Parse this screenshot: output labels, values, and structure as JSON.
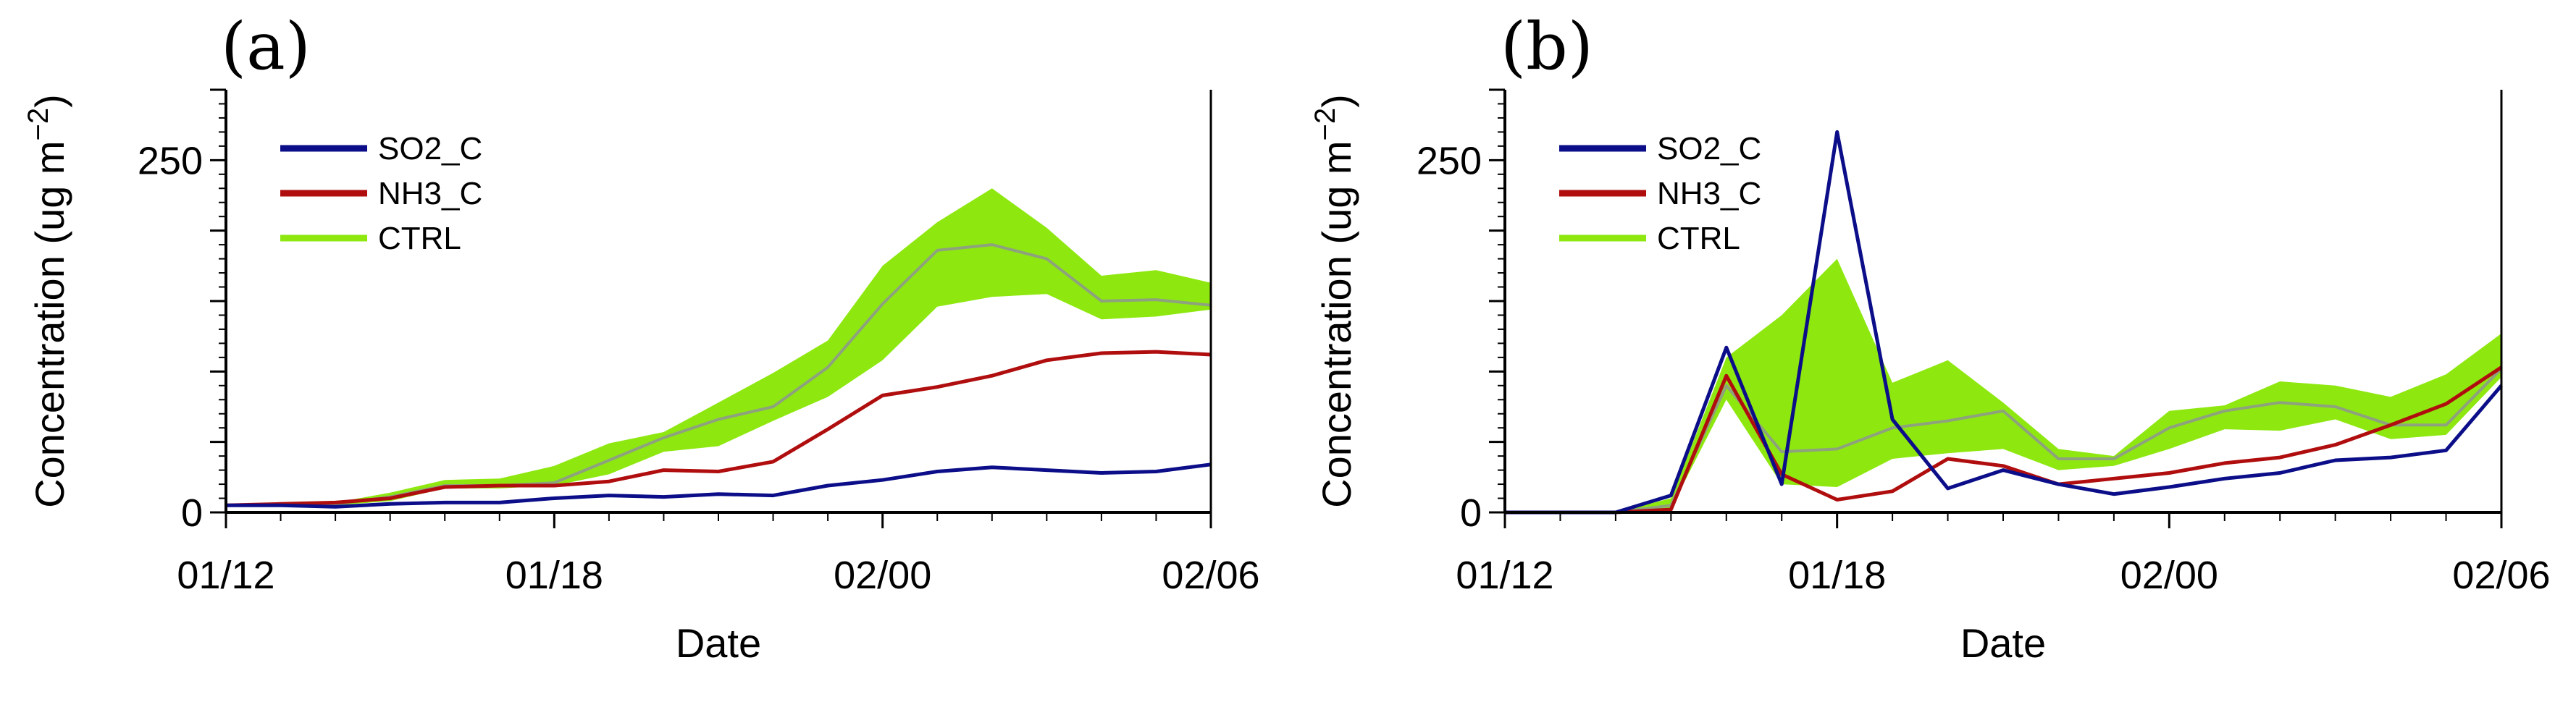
{
  "chart_data": [
    {
      "panel_label": "(a)",
      "type": "line",
      "xlabel": "Date",
      "ylabel": "Concentration (ug m",
      "ylabel_exponent": "−2",
      "ylabel_suffix": ")",
      "x": [
        0,
        1,
        2,
        3,
        4,
        5,
        6,
        7,
        8,
        9,
        10,
        11,
        12,
        13,
        14,
        15,
        16,
        17,
        18
      ],
      "xticks": [
        {
          "x": 0,
          "label": "01/12"
        },
        {
          "x": 6,
          "label": "01/18"
        },
        {
          "x": 12,
          "label": "02/00"
        },
        {
          "x": 18,
          "label": "02/06"
        }
      ],
      "ylim": [
        0,
        300
      ],
      "yticks": [
        {
          "y": 0,
          "label": "0"
        },
        {
          "y": 250,
          "label": "250"
        }
      ],
      "ytick_major": [
        0,
        50,
        100,
        150,
        200,
        250,
        300
      ],
      "ytick_minor_step": 10,
      "grid": false,
      "legend_position": "top-left",
      "series": [
        {
          "name": "SO2_C",
          "color": "#0b0e88",
          "values": [
            5,
            5,
            4,
            6,
            7,
            7,
            10,
            12,
            11,
            13,
            12,
            19,
            23,
            29,
            32,
            30,
            28,
            29,
            34
          ]
        },
        {
          "name": "NH3_C",
          "color": "#b00e0e",
          "values": [
            5,
            6,
            7,
            10,
            18,
            19,
            19,
            22,
            30,
            29,
            36,
            59,
            83,
            89,
            97,
            108,
            113,
            114,
            112
          ]
        },
        {
          "name": "CTRL",
          "color": "#8ee810",
          "line_color": "#8da27d",
          "values": [
            5,
            5,
            6,
            11,
            19,
            19,
            21,
            37,
            53,
            66,
            75,
            103,
            148,
            186,
            190,
            180,
            150,
            151,
            147
          ],
          "lower": [
            5,
            5,
            5,
            8,
            17,
            17,
            19,
            27,
            43,
            47,
            65,
            82,
            108,
            146,
            153,
            155,
            137,
            139,
            144
          ],
          "upper": [
            5,
            6,
            7,
            14,
            23,
            24,
            33,
            49,
            57,
            78,
            99,
            122,
            175,
            206,
            230,
            202,
            168,
            172,
            163
          ]
        }
      ]
    },
    {
      "panel_label": "(b)",
      "type": "line",
      "xlabel": "Date",
      "ylabel": "Concentration (ug m",
      "ylabel_exponent": "−2",
      "ylabel_suffix": ")",
      "x": [
        0,
        1,
        2,
        3,
        4,
        5,
        6,
        7,
        8,
        9,
        10,
        11,
        12,
        13,
        14,
        15,
        16,
        17,
        18
      ],
      "xticks": [
        {
          "x": 0,
          "label": "01/12"
        },
        {
          "x": 6,
          "label": "01/18"
        },
        {
          "x": 12,
          "label": "02/00"
        },
        {
          "x": 18,
          "label": "02/06"
        }
      ],
      "ylim": [
        0,
        300
      ],
      "yticks": [
        {
          "y": 0,
          "label": "0"
        },
        {
          "y": 250,
          "label": "250"
        }
      ],
      "ytick_major": [
        0,
        50,
        100,
        150,
        200,
        250,
        300
      ],
      "ytick_minor_step": 10,
      "grid": false,
      "legend_position": "top-left",
      "series": [
        {
          "name": "SO2_C",
          "color": "#0b0e88",
          "values": [
            0,
            0,
            0,
            12,
            117,
            20,
            270,
            66,
            17,
            30,
            20,
            13,
            18,
            24,
            28,
            37,
            39,
            44,
            90
          ]
        },
        {
          "name": "NH3_C",
          "color": "#b00e0e",
          "values": [
            0,
            0,
            0,
            2,
            97,
            27,
            9,
            15,
            38,
            33,
            20,
            24,
            28,
            35,
            39,
            48,
            62,
            77,
            103
          ]
        },
        {
          "name": "CTRL",
          "color": "#8ee810",
          "line_color": "#8da27d",
          "values": [
            0,
            0,
            0,
            5,
            90,
            43,
            45,
            60,
            65,
            72,
            38,
            38,
            60,
            72,
            78,
            75,
            62,
            62,
            102
          ],
          "lower": [
            0,
            0,
            0,
            3,
            80,
            20,
            18,
            38,
            42,
            45,
            30,
            33,
            45,
            59,
            58,
            66,
            52,
            55,
            96
          ],
          "upper": [
            0,
            0,
            0,
            10,
            110,
            140,
            180,
            92,
            108,
            78,
            45,
            40,
            72,
            76,
            93,
            90,
            82,
            98,
            127
          ]
        }
      ]
    }
  ]
}
